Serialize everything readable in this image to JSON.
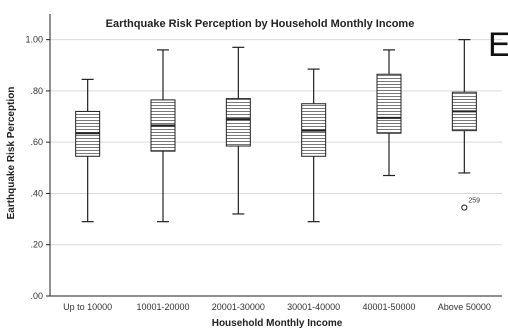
{
  "chart_data": {
    "type": "box",
    "title": "Earthquake Risk Perception by Household Monthly Income",
    "xlabel": "Household Monthly Income",
    "ylabel": "Earthquake Risk Perception",
    "yticks": [
      ".00",
      ".20",
      ".40",
      ".60",
      ".80",
      "1.00"
    ],
    "ylim": [
      0,
      1.1
    ],
    "grid": "horizontal",
    "categories": [
      "Up to 10000",
      "10001-20000",
      "20001-30000",
      "30001-40000",
      "40001-50000",
      "Above 50000"
    ],
    "boxes": [
      {
        "min": 0.29,
        "q1": 0.545,
        "median": 0.635,
        "q3": 0.72,
        "max": 0.845
      },
      {
        "min": 0.29,
        "q1": 0.565,
        "median": 0.665,
        "q3": 0.765,
        "max": 0.96
      },
      {
        "min": 0.32,
        "q1": 0.585,
        "median": 0.69,
        "q3": 0.77,
        "max": 0.97
      },
      {
        "min": 0.29,
        "q1": 0.545,
        "median": 0.645,
        "q3": 0.75,
        "max": 0.885
      },
      {
        "min": 0.47,
        "q1": 0.635,
        "median": 0.695,
        "q3": 0.865,
        "max": 0.96
      },
      {
        "min": 0.48,
        "q1": 0.645,
        "median": 0.72,
        "q3": 0.795,
        "max": 1.0
      }
    ],
    "outliers": [
      {
        "category": "Above 50000",
        "value": 0.345,
        "label": "259"
      }
    ],
    "corner_glyph": "E"
  },
  "colors": {
    "grid": "#d9d9d9",
    "box_fill": "#ffffff",
    "hatch": "#555555",
    "stroke": "#222222"
  }
}
